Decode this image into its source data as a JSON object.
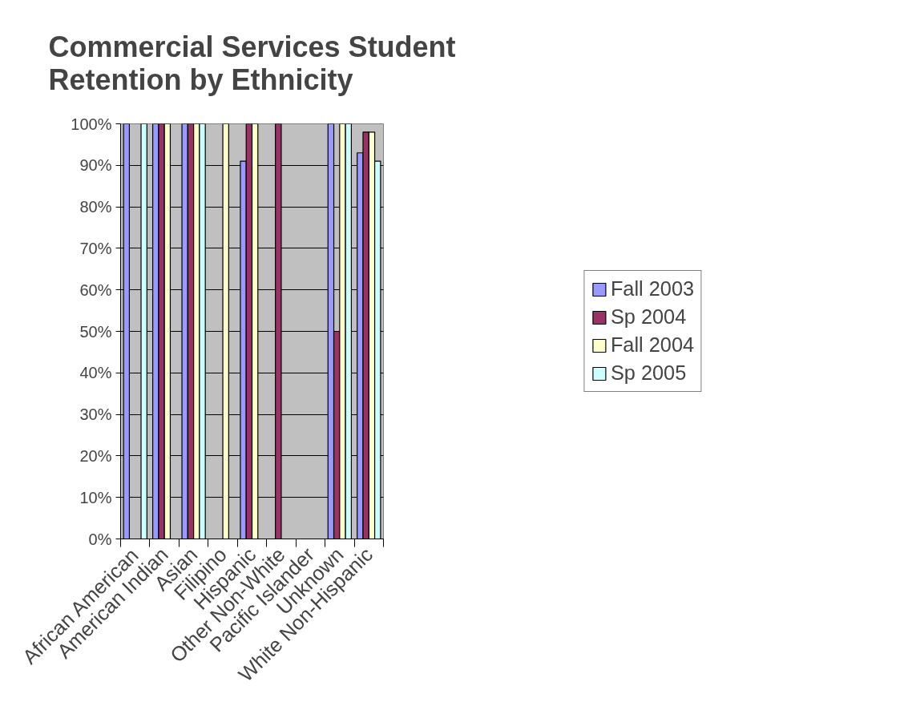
{
  "chart_data": {
    "type": "bar",
    "title": "Commercial Services Student Retention by Ethnicity",
    "categories": [
      "African American",
      "American Indian",
      "Asian",
      "Filipino",
      "Hispanic",
      "Other Non-White",
      "Pacific Islander",
      "Unknown",
      "White Non-Hispanic"
    ],
    "series": [
      {
        "name": "Fall 2003",
        "color": "#9999ff",
        "values": [
          100,
          100,
          100,
          null,
          91,
          null,
          null,
          100,
          93
        ]
      },
      {
        "name": "Sp 2004",
        "color": "#993366",
        "values": [
          null,
          100,
          100,
          null,
          100,
          100,
          null,
          50,
          98
        ]
      },
      {
        "name": "Fall 2004",
        "color": "#ffffcc",
        "values": [
          null,
          100,
          100,
          100,
          100,
          null,
          null,
          100,
          98
        ]
      },
      {
        "name": "Sp 2005",
        "color": "#ccffff",
        "values": [
          100,
          null,
          100,
          null,
          null,
          null,
          null,
          100,
          91
        ]
      }
    ],
    "ylim": [
      0,
      100
    ],
    "yticks": [
      {
        "value": 0,
        "label": "0%"
      },
      {
        "value": 10,
        "label": "10%"
      },
      {
        "value": 20,
        "label": "20%"
      },
      {
        "value": 30,
        "label": "30%"
      },
      {
        "value": 40,
        "label": "40%"
      },
      {
        "value": 50,
        "label": "50%"
      },
      {
        "value": 60,
        "label": "60%"
      },
      {
        "value": 70,
        "label": "70%"
      },
      {
        "value": 80,
        "label": "80%"
      },
      {
        "value": 90,
        "label": "90%"
      },
      {
        "value": 100,
        "label": "100%"
      }
    ],
    "grid": "y",
    "legend": "right"
  }
}
